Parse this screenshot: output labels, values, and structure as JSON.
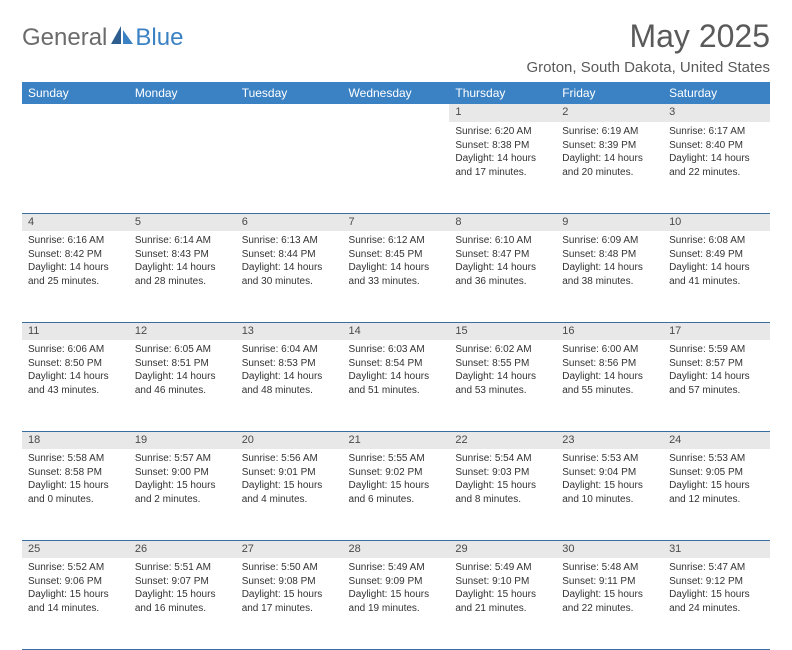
{
  "logo": {
    "text1": "General",
    "text2": "Blue"
  },
  "title": "May 2025",
  "location": "Groton, South Dakota, United States",
  "colors": {
    "header_bg": "#3b82c4",
    "header_text": "#ffffff",
    "daynum_bg": "#e8e8e8",
    "border": "#3b6ea0",
    "logo_gray": "#6b6b6b",
    "logo_blue": "#3b82c4",
    "title_color": "#5a5a5a"
  },
  "day_headers": [
    "Sunday",
    "Monday",
    "Tuesday",
    "Wednesday",
    "Thursday",
    "Friday",
    "Saturday"
  ],
  "weeks": [
    [
      null,
      null,
      null,
      null,
      {
        "n": "1",
        "sunrise": "6:20 AM",
        "sunset": "8:38 PM",
        "dl": "14 hours and 17 minutes."
      },
      {
        "n": "2",
        "sunrise": "6:19 AM",
        "sunset": "8:39 PM",
        "dl": "14 hours and 20 minutes."
      },
      {
        "n": "3",
        "sunrise": "6:17 AM",
        "sunset": "8:40 PM",
        "dl": "14 hours and 22 minutes."
      }
    ],
    [
      {
        "n": "4",
        "sunrise": "6:16 AM",
        "sunset": "8:42 PM",
        "dl": "14 hours and 25 minutes."
      },
      {
        "n": "5",
        "sunrise": "6:14 AM",
        "sunset": "8:43 PM",
        "dl": "14 hours and 28 minutes."
      },
      {
        "n": "6",
        "sunrise": "6:13 AM",
        "sunset": "8:44 PM",
        "dl": "14 hours and 30 minutes."
      },
      {
        "n": "7",
        "sunrise": "6:12 AM",
        "sunset": "8:45 PM",
        "dl": "14 hours and 33 minutes."
      },
      {
        "n": "8",
        "sunrise": "6:10 AM",
        "sunset": "8:47 PM",
        "dl": "14 hours and 36 minutes."
      },
      {
        "n": "9",
        "sunrise": "6:09 AM",
        "sunset": "8:48 PM",
        "dl": "14 hours and 38 minutes."
      },
      {
        "n": "10",
        "sunrise": "6:08 AM",
        "sunset": "8:49 PM",
        "dl": "14 hours and 41 minutes."
      }
    ],
    [
      {
        "n": "11",
        "sunrise": "6:06 AM",
        "sunset": "8:50 PM",
        "dl": "14 hours and 43 minutes."
      },
      {
        "n": "12",
        "sunrise": "6:05 AM",
        "sunset": "8:51 PM",
        "dl": "14 hours and 46 minutes."
      },
      {
        "n": "13",
        "sunrise": "6:04 AM",
        "sunset": "8:53 PM",
        "dl": "14 hours and 48 minutes."
      },
      {
        "n": "14",
        "sunrise": "6:03 AM",
        "sunset": "8:54 PM",
        "dl": "14 hours and 51 minutes."
      },
      {
        "n": "15",
        "sunrise": "6:02 AM",
        "sunset": "8:55 PM",
        "dl": "14 hours and 53 minutes."
      },
      {
        "n": "16",
        "sunrise": "6:00 AM",
        "sunset": "8:56 PM",
        "dl": "14 hours and 55 minutes."
      },
      {
        "n": "17",
        "sunrise": "5:59 AM",
        "sunset": "8:57 PM",
        "dl": "14 hours and 57 minutes."
      }
    ],
    [
      {
        "n": "18",
        "sunrise": "5:58 AM",
        "sunset": "8:58 PM",
        "dl": "15 hours and 0 minutes."
      },
      {
        "n": "19",
        "sunrise": "5:57 AM",
        "sunset": "9:00 PM",
        "dl": "15 hours and 2 minutes."
      },
      {
        "n": "20",
        "sunrise": "5:56 AM",
        "sunset": "9:01 PM",
        "dl": "15 hours and 4 minutes."
      },
      {
        "n": "21",
        "sunrise": "5:55 AM",
        "sunset": "9:02 PM",
        "dl": "15 hours and 6 minutes."
      },
      {
        "n": "22",
        "sunrise": "5:54 AM",
        "sunset": "9:03 PM",
        "dl": "15 hours and 8 minutes."
      },
      {
        "n": "23",
        "sunrise": "5:53 AM",
        "sunset": "9:04 PM",
        "dl": "15 hours and 10 minutes."
      },
      {
        "n": "24",
        "sunrise": "5:53 AM",
        "sunset": "9:05 PM",
        "dl": "15 hours and 12 minutes."
      }
    ],
    [
      {
        "n": "25",
        "sunrise": "5:52 AM",
        "sunset": "9:06 PM",
        "dl": "15 hours and 14 minutes."
      },
      {
        "n": "26",
        "sunrise": "5:51 AM",
        "sunset": "9:07 PM",
        "dl": "15 hours and 16 minutes."
      },
      {
        "n": "27",
        "sunrise": "5:50 AM",
        "sunset": "9:08 PM",
        "dl": "15 hours and 17 minutes."
      },
      {
        "n": "28",
        "sunrise": "5:49 AM",
        "sunset": "9:09 PM",
        "dl": "15 hours and 19 minutes."
      },
      {
        "n": "29",
        "sunrise": "5:49 AM",
        "sunset": "9:10 PM",
        "dl": "15 hours and 21 minutes."
      },
      {
        "n": "30",
        "sunrise": "5:48 AM",
        "sunset": "9:11 PM",
        "dl": "15 hours and 22 minutes."
      },
      {
        "n": "31",
        "sunrise": "5:47 AM",
        "sunset": "9:12 PM",
        "dl": "15 hours and 24 minutes."
      }
    ]
  ],
  "labels": {
    "sunrise_prefix": "Sunrise: ",
    "sunset_prefix": "Sunset: ",
    "daylight_prefix": "Daylight: "
  }
}
